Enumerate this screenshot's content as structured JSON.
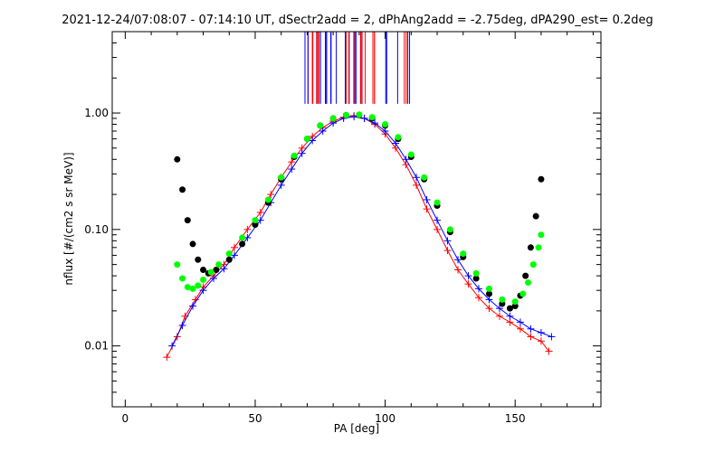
{
  "chart_data": {
    "type": "scatter",
    "title": "2021-12-24/07:08:07 - 07:14:10 UT, dSectr2add = 2, dPhAng2add = -2.75deg, dPA290_est=   0.2deg",
    "xlabel": "PA [deg]",
    "ylabel": "nflux [#/(cm2 s sr MeV)]",
    "xlim": [
      -5,
      183
    ],
    "ylim": [
      0.003,
      5.0
    ],
    "yscale": "log",
    "grid": false,
    "x_ticks": [
      0,
      50,
      100,
      150
    ],
    "x_tick_labels": [
      "0",
      "50",
      "100",
      "150"
    ],
    "y_ticks": [
      0.01,
      0.1,
      1.0
    ],
    "y_tick_labels": [
      "0.01",
      "0.10",
      "1.00"
    ],
    "colors": {
      "red_series": "#ff0000",
      "blue_series": "#0000ff",
      "black_fit": "#000000",
      "green_fit": "#00ff00"
    },
    "series": [
      {
        "color": "#ff0000",
        "marker": "plus",
        "style": "lines+markers",
        "x": [
          16,
          20,
          23,
          27,
          30,
          34,
          38,
          42,
          47,
          52,
          56,
          60,
          64,
          68,
          72,
          76,
          80,
          84,
          88,
          92,
          96,
          100,
          104,
          108,
          112,
          116,
          120,
          124,
          128,
          132,
          136,
          140,
          144,
          148,
          152,
          156,
          160,
          163
        ],
        "y": [
          0.008,
          0.012,
          0.018,
          0.025,
          0.032,
          0.04,
          0.05,
          0.07,
          0.1,
          0.14,
          0.2,
          0.28,
          0.38,
          0.5,
          0.63,
          0.75,
          0.85,
          0.92,
          0.95,
          0.9,
          0.8,
          0.66,
          0.5,
          0.36,
          0.24,
          0.15,
          0.1,
          0.066,
          0.045,
          0.034,
          0.026,
          0.021,
          0.018,
          0.016,
          0.014,
          0.012,
          0.011,
          0.009
        ]
      },
      {
        "color": "#0000ff",
        "marker": "plus",
        "style": "lines+markers",
        "x": [
          18,
          22,
          26,
          30,
          34,
          38,
          42,
          47,
          52,
          56,
          60,
          64,
          68,
          72,
          76,
          80,
          84,
          88,
          92,
          96,
          100,
          104,
          108,
          112,
          116,
          120,
          124,
          128,
          132,
          136,
          140,
          144,
          148,
          152,
          156,
          160,
          164
        ],
        "y": [
          0.01,
          0.015,
          0.022,
          0.03,
          0.038,
          0.046,
          0.06,
          0.085,
          0.12,
          0.17,
          0.24,
          0.33,
          0.45,
          0.58,
          0.7,
          0.82,
          0.9,
          0.93,
          0.9,
          0.82,
          0.7,
          0.55,
          0.4,
          0.28,
          0.18,
          0.12,
          0.08,
          0.055,
          0.04,
          0.031,
          0.025,
          0.021,
          0.018,
          0.016,
          0.014,
          0.013,
          0.012
        ]
      },
      {
        "name": "",
        "color": "#000000",
        "marker": "circle",
        "style": "markers",
        "x": [
          20,
          22,
          24,
          26,
          28,
          30,
          32,
          35,
          40,
          45,
          50,
          55,
          60,
          65,
          70,
          75,
          80,
          85,
          90,
          95,
          100,
          105,
          110,
          115,
          120,
          125,
          130,
          135,
          140,
          145,
          148,
          150,
          152,
          154,
          156,
          158,
          160
        ],
        "y": [
          0.4,
          0.22,
          0.12,
          0.075,
          0.055,
          0.045,
          0.042,
          0.045,
          0.055,
          0.075,
          0.11,
          0.17,
          0.27,
          0.42,
          0.6,
          0.78,
          0.9,
          0.96,
          0.96,
          0.9,
          0.78,
          0.6,
          0.42,
          0.27,
          0.16,
          0.095,
          0.058,
          0.038,
          0.028,
          0.023,
          0.021,
          0.022,
          0.027,
          0.04,
          0.07,
          0.13,
          0.27
        ]
      },
      {
        "name": "",
        "color": "#00ff00",
        "marker": "circle",
        "style": "markers",
        "x": [
          20,
          22,
          24,
          26,
          28,
          30,
          33,
          36,
          40,
          45,
          50,
          55,
          60,
          65,
          70,
          75,
          80,
          85,
          90,
          95,
          100,
          105,
          110,
          115,
          120,
          125,
          130,
          135,
          140,
          145,
          150,
          153,
          155,
          157,
          159,
          160
        ],
        "y": [
          0.05,
          0.038,
          0.032,
          0.031,
          0.033,
          0.037,
          0.043,
          0.05,
          0.062,
          0.085,
          0.12,
          0.18,
          0.28,
          0.43,
          0.6,
          0.78,
          0.9,
          0.96,
          0.97,
          0.92,
          0.8,
          0.62,
          0.44,
          0.28,
          0.17,
          0.1,
          0.062,
          0.042,
          0.031,
          0.025,
          0.024,
          0.028,
          0.035,
          0.05,
          0.07,
          0.09
        ]
      }
    ],
    "vertical_lines": {
      "x_min": 67,
      "x_max": 110,
      "count": 40,
      "y_from": 1.2,
      "colors": [
        "#ff0000",
        "#0000ff"
      ]
    }
  }
}
